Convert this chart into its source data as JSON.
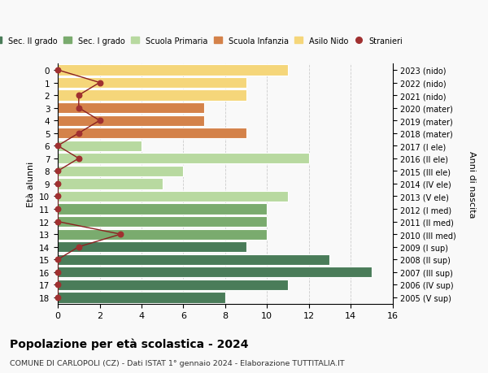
{
  "ages": [
    18,
    17,
    16,
    15,
    14,
    13,
    12,
    11,
    10,
    9,
    8,
    7,
    6,
    5,
    4,
    3,
    2,
    1,
    0
  ],
  "right_labels": [
    "2005 (V sup)",
    "2006 (IV sup)",
    "2007 (III sup)",
    "2008 (II sup)",
    "2009 (I sup)",
    "2010 (III med)",
    "2011 (II med)",
    "2012 (I med)",
    "2013 (V ele)",
    "2014 (IV ele)",
    "2015 (III ele)",
    "2016 (II ele)",
    "2017 (I ele)",
    "2018 (mater)",
    "2019 (mater)",
    "2020 (mater)",
    "2021 (nido)",
    "2022 (nido)",
    "2023 (nido)"
  ],
  "bar_values": [
    8,
    11,
    15,
    13,
    9,
    10,
    10,
    10,
    11,
    5,
    6,
    12,
    4,
    9,
    7,
    7,
    9,
    9,
    11
  ],
  "bar_colors": [
    "#4a7c59",
    "#4a7c59",
    "#4a7c59",
    "#4a7c59",
    "#4a7c59",
    "#7aab6e",
    "#7aab6e",
    "#7aab6e",
    "#b8d9a0",
    "#b8d9a0",
    "#b8d9a0",
    "#b8d9a0",
    "#b8d9a0",
    "#d4824a",
    "#d4824a",
    "#d4824a",
    "#f5d67a",
    "#f5d67a",
    "#f5d67a"
  ],
  "stranieri_values": [
    0,
    0,
    0,
    0,
    1,
    3,
    0,
    0,
    0,
    0,
    0,
    1,
    0,
    1,
    2,
    1,
    1,
    2,
    0
  ],
  "legend_labels": [
    "Sec. II grado",
    "Sec. I grado",
    "Scuola Primaria",
    "Scuola Infanzia",
    "Asilo Nido",
    "Stranieri"
  ],
  "legend_colors": [
    "#4a7c59",
    "#7aab6e",
    "#b8d9a0",
    "#d4824a",
    "#f5d67a",
    "#a83232"
  ],
  "title": "Popolazione per età scolastica - 2024",
  "subtitle": "COMUNE DI CARLOPOLI (CZ) - Dati ISTAT 1° gennaio 2024 - Elaborazione TUTTITALIA.IT",
  "ylabel_left": "Età alunni",
  "ylabel_right": "Anni di nascita",
  "xlim": [
    0,
    16
  ],
  "xticks": [
    0,
    2,
    4,
    6,
    8,
    10,
    12,
    14,
    16
  ],
  "bg_color": "#f9f9f9",
  "grid_color": "#cccccc",
  "stranieri_color": "#a03030",
  "stranieri_line_color": "#8b2020"
}
